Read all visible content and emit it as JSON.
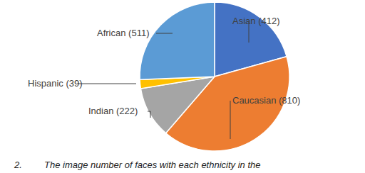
{
  "chart_data": {
    "type": "pie",
    "categories": [
      "Asian",
      "Caucasian",
      "Indian",
      "Hispanic",
      "African"
    ],
    "values": [
      412,
      810,
      222,
      39,
      511
    ],
    "value_labels": [
      "Asian (412)",
      "Caucasian (810)",
      "Indian (222)",
      "Hispanic (39)",
      "African (511)"
    ],
    "colors": [
      "#4472c4",
      "#ed7d31",
      "#a5a5a5",
      "#ffc000",
      "#5b9bd5"
    ],
    "data_labels": true,
    "annotations": [
      "2.",
      "The image number of faces with each ethnicity in the"
    ]
  }
}
